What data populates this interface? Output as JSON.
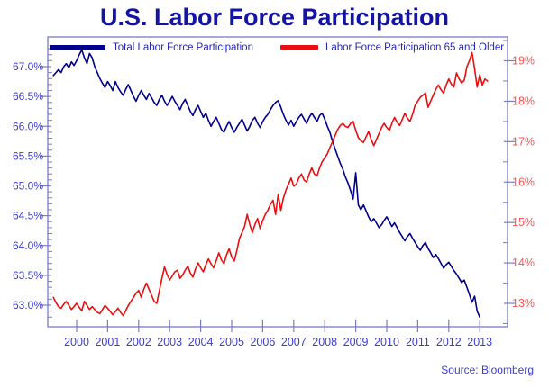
{
  "title": {
    "text": "U.S. Labor Force Participation",
    "color": "#1414a2"
  },
  "source": {
    "text": "Source: Bloomberg",
    "color": "#3d3dcc"
  },
  "legend": {
    "text_color": "#2626b4",
    "items": [
      {
        "label": "Total Labor Force Participation",
        "color": "#00008b"
      },
      {
        "label": "Labor Force Participation 65 and Older",
        "color": "#e90f10"
      }
    ]
  },
  "chart_data": {
    "type": "line",
    "title": "U.S. Labor Force Participation",
    "grid": false,
    "legend_position": "top",
    "axis_color": "#7b7bc4",
    "x_axis": {
      "tick_years": [
        2000,
        2001,
        2002,
        2003,
        2004,
        2005,
        2006,
        2007,
        2008,
        2009,
        2010,
        2011,
        2012,
        2013
      ],
      "label_color": "#3d3dcc"
    },
    "left_axis": {
      "min": 63.0,
      "max": 67.0,
      "major_step": 0.5,
      "minor_step": 0.1,
      "tick_labels": [
        "67.0%",
        "66.5%",
        "66.0%",
        "65.5%",
        "65.0%",
        "64.5%",
        "64.0%",
        "63.5%",
        "63.0%"
      ],
      "label_color": "#3d3dcc"
    },
    "right_axis": {
      "min": 13,
      "max": 19,
      "major_step": 1,
      "minor_step": 0.5,
      "tick_labels": [
        "19%",
        "18%",
        "17%",
        "16%",
        "15%",
        "14%",
        "13%"
      ],
      "label_color": "#fc5353"
    },
    "x_start_year": 1999.25,
    "x_step_years": 0.0833333,
    "series": [
      {
        "name": "Total Labor Force Participation",
        "axis": "left",
        "color": "#00008b",
        "values": [
          66.85,
          66.9,
          66.95,
          66.9,
          67.0,
          67.05,
          66.98,
          67.08,
          67.02,
          67.1,
          67.2,
          67.28,
          67.15,
          67.05,
          67.22,
          67.15,
          67.0,
          66.9,
          66.8,
          66.72,
          66.65,
          66.75,
          66.68,
          66.6,
          66.75,
          66.65,
          66.58,
          66.52,
          66.62,
          66.7,
          66.6,
          66.5,
          66.42,
          66.52,
          66.6,
          66.52,
          66.45,
          66.55,
          66.48,
          66.4,
          66.35,
          66.45,
          66.52,
          66.42,
          66.35,
          66.42,
          66.5,
          66.42,
          66.35,
          66.28,
          66.38,
          66.45,
          66.35,
          66.25,
          66.18,
          66.28,
          66.35,
          66.25,
          66.15,
          66.22,
          66.1,
          66.0,
          66.08,
          66.15,
          66.05,
          65.95,
          65.9,
          66.0,
          66.08,
          65.98,
          65.9,
          65.98,
          66.05,
          66.12,
          66.02,
          65.92,
          66.0,
          66.1,
          66.15,
          66.05,
          65.98,
          66.08,
          66.15,
          66.2,
          66.28,
          66.35,
          66.4,
          66.43,
          66.32,
          66.2,
          66.1,
          66.02,
          66.1,
          66.0,
          66.08,
          66.15,
          66.2,
          66.12,
          66.05,
          66.15,
          66.22,
          66.15,
          66.08,
          66.18,
          66.22,
          66.12,
          66.0,
          65.9,
          65.75,
          65.62,
          65.5,
          65.38,
          65.28,
          65.15,
          65.05,
          64.92,
          64.78,
          65.22,
          64.68,
          64.6,
          64.68,
          64.58,
          64.48,
          64.4,
          64.45,
          64.38,
          64.3,
          64.35,
          64.42,
          64.48,
          64.4,
          64.32,
          64.38,
          64.3,
          64.22,
          64.15,
          64.08,
          64.15,
          64.2,
          64.12,
          64.05,
          63.98,
          63.92,
          64.0,
          64.05,
          63.95,
          63.88,
          63.8,
          63.85,
          63.78,
          63.7,
          63.62,
          63.68,
          63.72,
          63.65,
          63.58,
          63.52,
          63.45,
          63.38,
          63.42,
          63.3,
          63.18,
          63.05,
          63.15,
          62.9,
          62.8
        ]
      },
      {
        "name": "Labor Force Participation 65 and Older",
        "axis": "right",
        "color": "#e90f10",
        "values": [
          13.15,
          13.02,
          12.92,
          12.88,
          12.98,
          13.05,
          12.95,
          12.85,
          12.92,
          13.0,
          12.9,
          12.82,
          13.05,
          12.95,
          12.85,
          12.92,
          12.85,
          12.78,
          12.75,
          12.85,
          12.95,
          12.88,
          12.8,
          12.72,
          12.8,
          12.88,
          12.78,
          12.7,
          12.82,
          12.95,
          13.05,
          13.15,
          13.25,
          13.32,
          13.15,
          13.35,
          13.5,
          13.35,
          13.2,
          13.05,
          13.0,
          13.3,
          13.62,
          13.9,
          13.72,
          13.58,
          13.68,
          13.78,
          13.82,
          13.62,
          13.7,
          13.82,
          13.92,
          13.75,
          13.65,
          13.85,
          14.0,
          13.88,
          13.78,
          13.95,
          14.1,
          13.98,
          13.88,
          14.05,
          14.25,
          14.08,
          13.98,
          14.2,
          14.35,
          14.15,
          14.05,
          14.3,
          14.6,
          14.75,
          14.9,
          15.2,
          14.95,
          14.75,
          14.95,
          15.1,
          14.85,
          15.05,
          15.2,
          15.3,
          15.45,
          15.55,
          15.2,
          15.7,
          15.3,
          15.6,
          15.8,
          15.95,
          16.1,
          15.9,
          15.95,
          16.1,
          16.2,
          16.05,
          16.0,
          16.2,
          16.35,
          16.2,
          16.15,
          16.35,
          16.5,
          16.6,
          16.7,
          16.85,
          17.0,
          17.15,
          17.3,
          17.4,
          17.45,
          17.38,
          17.35,
          17.45,
          17.5,
          17.28,
          17.1,
          17.02,
          16.98,
          17.12,
          17.25,
          17.05,
          16.9,
          17.05,
          17.2,
          17.35,
          17.45,
          17.35,
          17.28,
          17.45,
          17.6,
          17.48,
          17.4,
          17.55,
          17.7,
          17.58,
          17.5,
          17.68,
          17.9,
          18.0,
          18.1,
          18.15,
          18.2,
          17.85,
          18.0,
          18.15,
          18.3,
          18.4,
          18.28,
          18.2,
          18.4,
          18.55,
          18.42,
          18.35,
          18.7,
          18.55,
          18.45,
          18.52,
          18.85,
          19.0,
          19.2,
          18.8,
          18.35,
          18.65,
          18.4,
          18.55,
          18.5
        ]
      }
    ]
  }
}
